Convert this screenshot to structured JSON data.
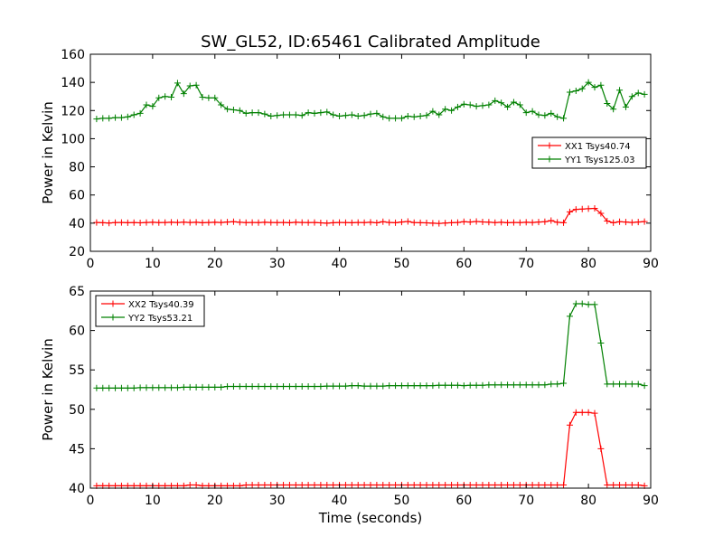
{
  "figure_title": "SW_GL52, ID:65461 Calibrated Amplitude",
  "chart_data": [
    {
      "type": "line",
      "title": "SW_GL52, ID:65461 Calibrated Amplitude",
      "xlabel": "",
      "ylabel": "Power in Kelvin",
      "xlim": [
        0,
        90
      ],
      "ylim": [
        20,
        160
      ],
      "xticks": [
        "0",
        "10",
        "20",
        "30",
        "40",
        "50",
        "60",
        "70",
        "80",
        "90"
      ],
      "yticks": [
        "20",
        "40",
        "60",
        "80",
        "100",
        "120",
        "140",
        "160"
      ],
      "legend_position": "center-right",
      "x": [
        1,
        2,
        3,
        4,
        5,
        6,
        7,
        8,
        9,
        10,
        11,
        12,
        13,
        14,
        15,
        16,
        17,
        18,
        19,
        20,
        21,
        22,
        23,
        24,
        25,
        26,
        27,
        28,
        29,
        30,
        31,
        32,
        33,
        34,
        35,
        36,
        37,
        38,
        39,
        40,
        41,
        42,
        43,
        44,
        45,
        46,
        47,
        48,
        49,
        50,
        51,
        52,
        53,
        54,
        55,
        56,
        57,
        58,
        59,
        60,
        61,
        62,
        63,
        64,
        65,
        66,
        67,
        68,
        69,
        70,
        71,
        72,
        73,
        74,
        75,
        76,
        77,
        78,
        79,
        80,
        81,
        82,
        83,
        84,
        85,
        86,
        87,
        88,
        89
      ],
      "series": [
        {
          "name": "XX1 Tsys40.74",
          "color": "#ff0000",
          "values": [
            40.5,
            40.3,
            40.1,
            40.4,
            40.5,
            40.3,
            40.4,
            40.2,
            40.5,
            40.6,
            40.4,
            40.5,
            40.6,
            40.5,
            40.7,
            40.5,
            40.6,
            40.3,
            40.5,
            40.6,
            40.5,
            40.8,
            41.0,
            40.6,
            40.4,
            40.5,
            40.4,
            40.6,
            40.5,
            40.4,
            40.5,
            40.3,
            40.6,
            40.5,
            40.4,
            40.5,
            40.2,
            40.0,
            40.3,
            40.5,
            40.4,
            40.3,
            40.5,
            40.4,
            40.6,
            40.2,
            41.0,
            40.5,
            40.3,
            40.8,
            41.2,
            40.4,
            40.3,
            40.2,
            40.0,
            39.8,
            40.1,
            40.3,
            40.5,
            41.0,
            40.8,
            41.2,
            40.9,
            40.7,
            40.4,
            40.6,
            40.3,
            40.5,
            40.4,
            40.6,
            40.5,
            40.8,
            41.0,
            41.8,
            40.6,
            40.3,
            48.0,
            49.8,
            50.0,
            50.3,
            50.5,
            47.0,
            41.5,
            40.3,
            41.0,
            40.8,
            40.5,
            40.8,
            41.1
          ]
        },
        {
          "name": "YY1 Tsys125.03",
          "color": "#008000",
          "values": [
            114,
            114.5,
            114.5,
            115,
            115,
            115.5,
            117,
            118,
            124,
            123,
            129,
            130,
            129.5,
            139.5,
            132,
            137.5,
            138,
            129.5,
            129,
            129,
            124,
            121,
            120.5,
            120,
            118,
            118.5,
            118.5,
            117.5,
            116,
            116.5,
            117,
            117,
            117,
            116.5,
            118.5,
            118,
            118.5,
            119,
            117,
            116,
            116.5,
            117,
            116,
            116.5,
            117.5,
            118,
            115.5,
            114.5,
            114.5,
            114.5,
            116,
            115.5,
            116,
            116.5,
            119.5,
            117,
            121,
            120,
            122.5,
            124.5,
            124,
            123,
            123.5,
            124,
            127,
            125.5,
            122.5,
            126,
            124,
            118.5,
            119.5,
            117,
            116.5,
            118,
            115.5,
            114.5,
            133,
            134,
            135.5,
            140,
            136.5,
            138,
            125,
            121,
            134.5,
            122.5,
            130,
            132.5,
            131.5
          ]
        }
      ]
    },
    {
      "type": "line",
      "title": "",
      "xlabel": "Time (seconds)",
      "ylabel": "Power in Kelvin",
      "xlim": [
        0,
        90
      ],
      "ylim": [
        40,
        65
      ],
      "xticks": [
        "0",
        "10",
        "20",
        "30",
        "40",
        "50",
        "60",
        "70",
        "80",
        "90"
      ],
      "yticks": [
        "40",
        "45",
        "50",
        "55",
        "60",
        "65"
      ],
      "legend_position": "upper-left",
      "x": [
        1,
        2,
        3,
        4,
        5,
        6,
        7,
        8,
        9,
        10,
        11,
        12,
        13,
        14,
        15,
        16,
        17,
        18,
        19,
        20,
        21,
        22,
        23,
        24,
        25,
        26,
        27,
        28,
        29,
        30,
        31,
        32,
        33,
        34,
        35,
        36,
        37,
        38,
        39,
        40,
        41,
        42,
        43,
        44,
        45,
        46,
        47,
        48,
        49,
        50,
        51,
        52,
        53,
        54,
        55,
        56,
        57,
        58,
        59,
        60,
        61,
        62,
        63,
        64,
        65,
        66,
        67,
        68,
        69,
        70,
        71,
        72,
        73,
        74,
        75,
        76,
        77,
        78,
        79,
        80,
        81,
        82,
        83,
        84,
        85,
        86,
        87,
        88,
        89
      ],
      "series": [
        {
          "name": "XX2 Tsys40.39",
          "color": "#ff0000",
          "values": [
            40.3,
            40.3,
            40.3,
            40.3,
            40.3,
            40.3,
            40.3,
            40.3,
            40.3,
            40.3,
            40.3,
            40.3,
            40.3,
            40.3,
            40.3,
            40.4,
            40.4,
            40.3,
            40.3,
            40.3,
            40.3,
            40.3,
            40.3,
            40.3,
            40.4,
            40.4,
            40.4,
            40.4,
            40.4,
            40.4,
            40.4,
            40.4,
            40.4,
            40.4,
            40.4,
            40.4,
            40.4,
            40.4,
            40.4,
            40.4,
            40.4,
            40.4,
            40.4,
            40.4,
            40.4,
            40.4,
            40.4,
            40.4,
            40.4,
            40.4,
            40.4,
            40.4,
            40.4,
            40.4,
            40.4,
            40.4,
            40.4,
            40.4,
            40.4,
            40.4,
            40.4,
            40.4,
            40.4,
            40.4,
            40.4,
            40.4,
            40.4,
            40.4,
            40.4,
            40.4,
            40.4,
            40.4,
            40.4,
            40.4,
            40.4,
            40.4,
            48.0,
            49.6,
            49.6,
            49.6,
            49.5,
            45.0,
            40.4,
            40.4,
            40.4,
            40.4,
            40.4,
            40.4,
            40.3
          ]
        },
        {
          "name": "YY2 Tsys53.21",
          "color": "#008000",
          "values": [
            52.7,
            52.7,
            52.7,
            52.7,
            52.7,
            52.7,
            52.7,
            52.75,
            52.75,
            52.75,
            52.75,
            52.75,
            52.75,
            52.75,
            52.8,
            52.8,
            52.8,
            52.8,
            52.8,
            52.8,
            52.8,
            52.9,
            52.9,
            52.9,
            52.9,
            52.9,
            52.9,
            52.9,
            52.9,
            52.9,
            52.9,
            52.9,
            52.9,
            52.9,
            52.9,
            52.9,
            52.9,
            52.95,
            52.95,
            52.95,
            52.95,
            53.0,
            53.0,
            52.95,
            52.95,
            52.95,
            52.95,
            53.0,
            53.0,
            53.0,
            53.0,
            53.0,
            53.0,
            53.0,
            53.0,
            53.05,
            53.05,
            53.05,
            53.05,
            53.0,
            53.05,
            53.05,
            53.05,
            53.1,
            53.1,
            53.1,
            53.1,
            53.1,
            53.1,
            53.1,
            53.1,
            53.1,
            53.1,
            53.2,
            53.2,
            53.3,
            61.8,
            63.4,
            63.4,
            63.3,
            63.3,
            58.4,
            53.2,
            53.2,
            53.2,
            53.2,
            53.2,
            53.2,
            53.0
          ]
        }
      ]
    }
  ]
}
